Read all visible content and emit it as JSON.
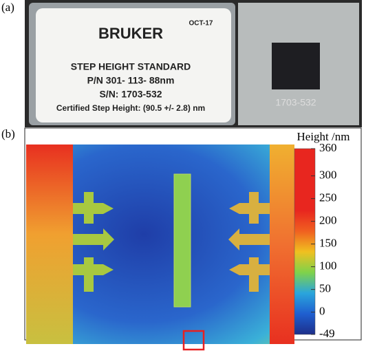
{
  "panel_a": {
    "label": "(a)",
    "card": {
      "brand": "BRUKER",
      "date": "OCT-17",
      "title": "STEP HEIGHT STANDARD",
      "part_number": "P/N 301- 113- 88nm",
      "serial": "S/N: 1703-532",
      "certified": "Certified Step Height: (90.5 +/- 2.8) nm"
    },
    "sample_text": "1703-532"
  },
  "panel_b": {
    "label": "(b)",
    "colorbar": {
      "title": "Height /nm",
      "lim": [
        -49,
        360
      ],
      "ticks": [
        360,
        300,
        250,
        200,
        150,
        100,
        50,
        0,
        -49
      ],
      "colors": [
        "#1d2f8a",
        "#1f5fd0",
        "#2aa5dc",
        "#7fd24a",
        "#f0c020",
        "#f06020",
        "#e8261f",
        "#e8261f",
        "#e8261f",
        "#e8261f"
      ]
    }
  }
}
